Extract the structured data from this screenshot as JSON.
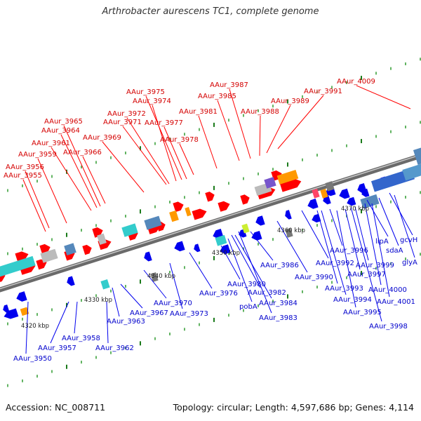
{
  "title": "Arthrobacter aurescens TC1, complete genome",
  "footer": {
    "accession": "Accession: NC_008711",
    "topology": "Topology: circular; Length: 4,597,686 bp; Genes: 4,114"
  },
  "colors": {
    "backbone": "#888888",
    "forward_gene": "#ff0000",
    "reverse_gene": "#0000ff",
    "top_label": "#d40000",
    "bottom_label": "#0000cc"
  },
  "kbp_labels": [
    "4320 kbp",
    "4330 kbp",
    "4340 kbp",
    "4350 kbp",
    "4360 kbp",
    "4370 kbp"
  ],
  "top_labels": [
    "AAur_3955",
    "AAur_3956",
    "AAur_3959",
    "AAur_3961",
    "AAur_3964",
    "AAur_3965",
    "AAur_3966",
    "AAur_3969",
    "AAur_3971",
    "AAur_3972",
    "AAur_3974",
    "AAur_3975",
    "AAur_3977",
    "AAur_3978",
    "AAur_3981",
    "AAur_3985",
    "AAur_3987",
    "AAur_3988",
    "AAur_3989",
    "AAur_3991",
    "AAur_4009"
  ],
  "bottom_labels": [
    "AAur_3950",
    "AAur_3957",
    "AAur_3958",
    "AAur_3962",
    "AAur_3963",
    "AAur_3967",
    "AAur_3970",
    "AAur_3973",
    "AAur_3976",
    "AAur_3980",
    "pobA",
    "AAur_3982",
    "AAur_3984",
    "AAur_3983",
    "AAur_3986",
    "AAur_3990",
    "AAur_3992",
    "AAur_3993",
    "AAur_3994",
    "AAur_3995",
    "AAur_3996",
    "AAur_3997",
    "AAur_3998",
    "AAur_3999",
    "AAur_4000",
    "AAur_4001",
    "lipA",
    "sdaA",
    "gcvH",
    "glyA"
  ]
}
